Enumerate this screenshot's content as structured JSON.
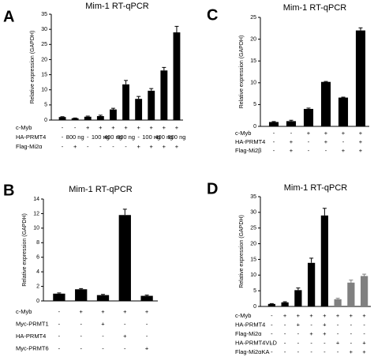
{
  "chart_data": [
    {
      "type": "bar",
      "panel": "A",
      "title": "Mim-1 RT-qPCR",
      "y_label": "Relative expression (GAPDH)",
      "ylim": [
        0,
        35
      ],
      "yticks": [
        0,
        5,
        10,
        15,
        20,
        25,
        30,
        35
      ],
      "color": "#000000",
      "values": [
        1.0,
        0.6,
        1.1,
        1.3,
        3.5,
        11.8,
        7.0,
        9.7,
        16.4,
        29.0
      ],
      "errors": [
        0.1,
        0.1,
        0.2,
        0.3,
        0.4,
        1.3,
        0.8,
        0.7,
        1.0,
        2.0
      ],
      "conditions": [
        {
          "label": "c-Myb",
          "marks": [
            "-",
            "-",
            "+",
            "+",
            "+",
            "+",
            "+",
            "+",
            "+",
            "+"
          ]
        },
        {
          "label": "HA-PRMT4",
          "marks": [
            "-",
            "800 ng",
            "-",
            "100 ng",
            "400 ng",
            "800 ng",
            "-",
            "100 ng",
            "400 ng",
            "800 ng"
          ]
        },
        {
          "label": "Flag-Mi2α",
          "marks": [
            "-",
            "+",
            "-",
            "-",
            "-",
            "-",
            "+",
            "+",
            "+",
            "+"
          ]
        }
      ]
    },
    {
      "type": "bar",
      "panel": "C",
      "title": "Mim-1 RT-qPCR",
      "y_label": "Relative expression (GAPDH)",
      "ylim": [
        0,
        25
      ],
      "yticks": [
        0,
        5,
        10,
        15,
        20,
        25
      ],
      "color": "#000000",
      "values": [
        1.0,
        1.2,
        4.0,
        10.2,
        6.6,
        22.0
      ],
      "errors": [
        0.1,
        0.2,
        0.2,
        0.1,
        0.1,
        0.6
      ],
      "conditions": [
        {
          "label": "c-Myb",
          "marks": [
            "-",
            "-",
            "+",
            "+",
            "+",
            "+"
          ]
        },
        {
          "label": "HA-PRMT4",
          "marks": [
            "-",
            "+",
            "-",
            "+",
            "-",
            "+"
          ]
        },
        {
          "label": "Flag-Mi2β",
          "marks": [
            "-",
            "+",
            "-",
            "-",
            "+",
            "+"
          ]
        }
      ]
    },
    {
      "type": "bar",
      "panel": "B",
      "title": "Mim-1 RT-qPCR",
      "y_label": "Relative expression (GAPDH)",
      "ylim": [
        0,
        14
      ],
      "yticks": [
        0,
        2,
        4,
        6,
        8,
        10,
        12,
        14
      ],
      "color": "#000000",
      "values": [
        1.0,
        1.6,
        0.8,
        11.8,
        0.7
      ],
      "errors": [
        0.1,
        0.1,
        0.1,
        0.8,
        0.1
      ],
      "conditions": [
        {
          "label": "c-Myb",
          "marks": [
            "-",
            "+",
            "+",
            "+",
            "+"
          ]
        },
        {
          "label": "Myc-PRMT1",
          "marks": [
            "-",
            "-",
            "+",
            "-",
            "-"
          ]
        },
        {
          "label": "HA-PRMT4",
          "marks": [
            "-",
            "-",
            "-",
            "+",
            "-"
          ]
        },
        {
          "label": "Myc-PRMT6",
          "marks": [
            "-",
            "-",
            "-",
            "-",
            "+"
          ]
        }
      ]
    },
    {
      "type": "bar",
      "panel": "D",
      "title": "Mim-1 RT-qPCR",
      "y_label": "Relative expression (GAPDH)",
      "ylim": [
        0,
        35
      ],
      "yticks": [
        0,
        5,
        10,
        15,
        20,
        25,
        30,
        35
      ],
      "colors": [
        "#000000",
        "#000000",
        "#000000",
        "#000000",
        "#000000",
        "#808080",
        "#808080",
        "#808080"
      ],
      "values": [
        0.8,
        1.3,
        5.2,
        13.9,
        29.0,
        2.3,
        7.6,
        9.7
      ],
      "errors": [
        0.1,
        0.2,
        0.7,
        1.5,
        2.3,
        0.3,
        0.8,
        0.6
      ],
      "conditions": [
        {
          "label": "c-Myb",
          "marks": [
            "-",
            "+",
            "+",
            "+",
            "+",
            "+",
            "+",
            "+"
          ]
        },
        {
          "label": "HA-PRMT4",
          "marks": [
            "-",
            "-",
            "+",
            "-",
            "+",
            "-",
            "-",
            "-"
          ]
        },
        {
          "label": "Flag-Mi2α",
          "marks": [
            "-",
            "-",
            "-",
            "+",
            "+",
            "-",
            "-",
            "-"
          ]
        },
        {
          "label": "HA-PRMT4VLD",
          "marks": [
            "-",
            "-",
            "-",
            "-",
            "-",
            "+",
            "-",
            "+"
          ]
        },
        {
          "label": "Flag-Mi2αKA",
          "marks": [
            "-",
            "-",
            "-",
            "-",
            "-",
            "-",
            "+",
            "+"
          ]
        }
      ]
    }
  ]
}
